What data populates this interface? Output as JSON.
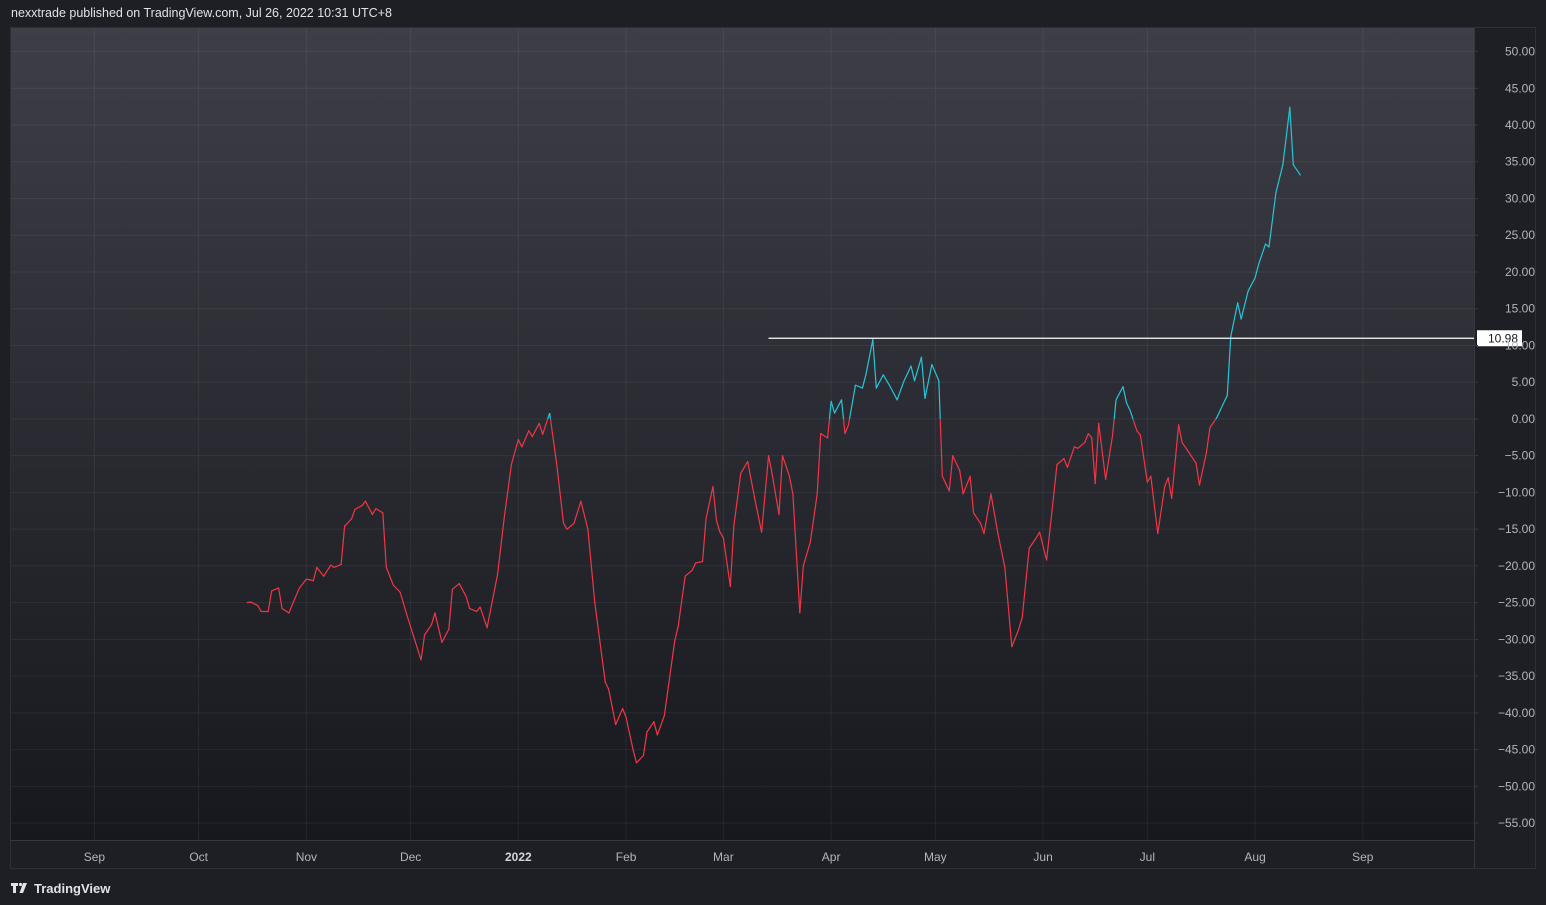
{
  "header": {
    "publisher_text": "nexxtrade published on TradingView.com, Jul 26, 2022 10:31 UTC+8"
  },
  "footer": {
    "brand": "TradingView"
  },
  "colors": {
    "up": "#26c6da",
    "down": "#f23645",
    "level_line": "#ffffff",
    "background_top": "#3d3e47",
    "background_bottom": "#17181d"
  },
  "chart_data": {
    "type": "line",
    "title": "",
    "xlabel": "",
    "ylabel": "",
    "x_ticks": [
      "Sep",
      "Oct",
      "Nov",
      "Dec",
      "2022",
      "Feb",
      "Mar",
      "Apr",
      "May",
      "Jun",
      "Jul",
      "Aug",
      "Sep"
    ],
    "y_ticks": [
      "50.00",
      "45.00",
      "40.00",
      "35.00",
      "30.00",
      "25.00",
      "20.00",
      "15.00",
      "10.00",
      "5.00",
      "0.00",
      "−5.00",
      "−10.00",
      "−15.00",
      "−20.00",
      "−25.00",
      "−30.00",
      "−35.00",
      "−40.00",
      "−45.00",
      "−50.00",
      "−55.00"
    ],
    "xlim": [
      "2021-08-08",
      "2022-10-03"
    ],
    "ylim": [
      -57.3,
      53.2
    ],
    "grid": true,
    "coloring_rule": "segments at or above 0 colored up (cyan), below 0 colored down (red)",
    "series": [
      {
        "points": [
          [
            "2021-10-15",
            -25.0
          ],
          [
            "2021-10-16",
            -24.9
          ],
          [
            "2021-10-18",
            -25.4
          ],
          [
            "2021-10-19",
            -26.2
          ],
          [
            "2021-10-21",
            -26.2
          ],
          [
            "2021-10-22",
            -23.4
          ],
          [
            "2021-10-24",
            -23.0
          ],
          [
            "2021-10-25",
            -25.8
          ],
          [
            "2021-10-27",
            -26.4
          ],
          [
            "2021-10-28",
            -25.2
          ],
          [
            "2021-10-30",
            -23.0
          ],
          [
            "2021-11-01",
            -21.8
          ],
          [
            "2021-11-03",
            -22.0
          ],
          [
            "2021-11-04",
            -20.2
          ],
          [
            "2021-11-06",
            -21.4
          ],
          [
            "2021-11-08",
            -19.9
          ],
          [
            "2021-11-09",
            -20.2
          ],
          [
            "2021-11-11",
            -19.8
          ],
          [
            "2021-11-12",
            -14.6
          ],
          [
            "2021-11-14",
            -13.6
          ],
          [
            "2021-11-15",
            -12.3
          ],
          [
            "2021-11-17",
            -11.8
          ],
          [
            "2021-11-18",
            -11.2
          ],
          [
            "2021-11-20",
            -13.0
          ],
          [
            "2021-11-21",
            -12.2
          ],
          [
            "2021-11-23",
            -12.8
          ],
          [
            "2021-11-24",
            -20.2
          ],
          [
            "2021-11-26",
            -22.6
          ],
          [
            "2021-11-28",
            -23.6
          ],
          [
            "2021-11-30",
            -26.8
          ],
          [
            "2021-12-02",
            -29.8
          ],
          [
            "2021-12-04",
            -32.8
          ],
          [
            "2021-12-05",
            -29.4
          ],
          [
            "2021-12-07",
            -28.0
          ],
          [
            "2021-12-08",
            -26.4
          ],
          [
            "2021-12-10",
            -30.4
          ],
          [
            "2021-12-12",
            -28.6
          ],
          [
            "2021-12-13",
            -23.2
          ],
          [
            "2021-12-15",
            -22.4
          ],
          [
            "2021-12-17",
            -24.2
          ],
          [
            "2021-12-18",
            -25.8
          ],
          [
            "2021-12-20",
            -26.2
          ],
          [
            "2021-12-21",
            -25.6
          ],
          [
            "2021-12-23",
            -28.4
          ],
          [
            "2021-12-26",
            -21.2
          ],
          [
            "2021-12-28",
            -13.2
          ],
          [
            "2021-12-30",
            -6.2
          ],
          [
            "2022-01-01",
            -2.8
          ],
          [
            "2022-01-02",
            -3.8
          ],
          [
            "2022-01-04",
            -1.6
          ],
          [
            "2022-01-05",
            -2.4
          ],
          [
            "2022-01-07",
            -0.6
          ],
          [
            "2022-01-08",
            -2.1
          ],
          [
            "2022-01-10",
            0.8
          ],
          [
            "2022-01-12",
            -6.0
          ],
          [
            "2022-01-14",
            -14.2
          ],
          [
            "2022-01-15",
            -15.0
          ],
          [
            "2022-01-17",
            -14.2
          ],
          [
            "2022-01-19",
            -11.2
          ],
          [
            "2022-01-21",
            -15.0
          ],
          [
            "2022-01-23",
            -25.0
          ],
          [
            "2022-01-26",
            -35.8
          ],
          [
            "2022-01-27",
            -36.8
          ],
          [
            "2022-01-29",
            -41.6
          ],
          [
            "2022-01-31",
            -39.4
          ],
          [
            "2022-02-01",
            -40.6
          ],
          [
            "2022-02-03",
            -45.0
          ],
          [
            "2022-02-04",
            -46.8
          ],
          [
            "2022-02-06",
            -45.8
          ],
          [
            "2022-02-07",
            -42.6
          ],
          [
            "2022-02-09",
            -41.2
          ],
          [
            "2022-02-10",
            -43.0
          ],
          [
            "2022-02-12",
            -40.4
          ],
          [
            "2022-02-15",
            -30.2
          ],
          [
            "2022-02-16",
            -28.2
          ],
          [
            "2022-02-18",
            -21.4
          ],
          [
            "2022-02-20",
            -20.6
          ],
          [
            "2022-02-21",
            -19.6
          ],
          [
            "2022-02-23",
            -19.4
          ],
          [
            "2022-02-24",
            -13.6
          ],
          [
            "2022-02-26",
            -9.2
          ],
          [
            "2022-02-27",
            -13.8
          ],
          [
            "2022-02-28",
            -15.4
          ],
          [
            "2022-03-01",
            -16.2
          ],
          [
            "2022-03-03",
            -22.8
          ],
          [
            "2022-03-04",
            -14.6
          ],
          [
            "2022-03-06",
            -7.4
          ],
          [
            "2022-03-08",
            -5.8
          ],
          [
            "2022-03-10",
            -10.8
          ],
          [
            "2022-03-12",
            -15.4
          ],
          [
            "2022-03-14",
            -5.0
          ],
          [
            "2022-03-15",
            -7.4
          ],
          [
            "2022-03-17",
            -13.0
          ],
          [
            "2022-03-18",
            -5.0
          ],
          [
            "2022-03-20",
            -7.8
          ],
          [
            "2022-03-21",
            -10.2
          ],
          [
            "2022-03-23",
            -26.4
          ],
          [
            "2022-03-24",
            -20.0
          ],
          [
            "2022-03-26",
            -16.8
          ],
          [
            "2022-03-28",
            -10.2
          ],
          [
            "2022-03-29",
            -2.0
          ],
          [
            "2022-03-31",
            -2.6
          ],
          [
            "2022-04-01",
            2.4
          ],
          [
            "2022-04-02",
            0.8
          ],
          [
            "2022-04-04",
            2.6
          ],
          [
            "2022-04-05",
            -2.0
          ],
          [
            "2022-04-06",
            -0.8
          ],
          [
            "2022-04-08",
            4.6
          ],
          [
            "2022-04-10",
            4.2
          ],
          [
            "2022-04-11",
            6.0
          ],
          [
            "2022-04-13",
            10.8
          ],
          [
            "2022-04-14",
            4.2
          ],
          [
            "2022-04-16",
            6.0
          ],
          [
            "2022-04-18",
            4.4
          ],
          [
            "2022-04-20",
            2.6
          ],
          [
            "2022-04-22",
            5.2
          ],
          [
            "2022-04-24",
            7.2
          ],
          [
            "2022-04-25",
            5.2
          ],
          [
            "2022-04-27",
            8.4
          ],
          [
            "2022-04-28",
            2.8
          ],
          [
            "2022-04-30",
            7.4
          ],
          [
            "2022-05-02",
            5.2
          ],
          [
            "2022-05-03",
            -7.8
          ],
          [
            "2022-05-05",
            -9.8
          ],
          [
            "2022-05-06",
            -5.0
          ],
          [
            "2022-05-08",
            -7.0
          ],
          [
            "2022-05-09",
            -10.2
          ],
          [
            "2022-05-11",
            -7.8
          ],
          [
            "2022-05-12",
            -12.8
          ],
          [
            "2022-05-14",
            -14.2
          ],
          [
            "2022-05-15",
            -15.6
          ],
          [
            "2022-05-17",
            -10.2
          ],
          [
            "2022-05-19",
            -15.6
          ],
          [
            "2022-05-21",
            -20.2
          ],
          [
            "2022-05-23",
            -31.0
          ],
          [
            "2022-05-25",
            -28.6
          ],
          [
            "2022-05-26",
            -27.0
          ],
          [
            "2022-05-28",
            -17.6
          ],
          [
            "2022-05-30",
            -16.2
          ],
          [
            "2022-05-31",
            -15.4
          ],
          [
            "2022-06-02",
            -19.2
          ],
          [
            "2022-06-03",
            -15.0
          ],
          [
            "2022-06-05",
            -6.2
          ],
          [
            "2022-06-07",
            -5.4
          ],
          [
            "2022-06-08",
            -6.6
          ],
          [
            "2022-06-10",
            -3.8
          ],
          [
            "2022-06-11",
            -4.0
          ],
          [
            "2022-06-13",
            -3.2
          ],
          [
            "2022-06-14",
            -2.0
          ],
          [
            "2022-06-15",
            -2.6
          ],
          [
            "2022-06-16",
            -8.8
          ],
          [
            "2022-06-17",
            -0.6
          ],
          [
            "2022-06-19",
            -8.2
          ],
          [
            "2022-06-21",
            -2.2
          ],
          [
            "2022-06-22",
            2.6
          ],
          [
            "2022-06-24",
            4.4
          ],
          [
            "2022-06-25",
            2.2
          ],
          [
            "2022-06-26",
            1.2
          ],
          [
            "2022-06-28",
            -1.6
          ],
          [
            "2022-06-29",
            -2.2
          ],
          [
            "2022-07-01",
            -8.6
          ],
          [
            "2022-07-02",
            -7.8
          ],
          [
            "2022-07-04",
            -15.6
          ],
          [
            "2022-07-06",
            -9.2
          ],
          [
            "2022-07-07",
            -8.0
          ],
          [
            "2022-07-08",
            -10.8
          ],
          [
            "2022-07-10",
            -0.8
          ],
          [
            "2022-07-11",
            -3.2
          ],
          [
            "2022-07-13",
            -4.6
          ],
          [
            "2022-07-15",
            -6.0
          ],
          [
            "2022-07-16",
            -9.0
          ],
          [
            "2022-07-18",
            -4.6
          ],
          [
            "2022-07-19",
            -1.2
          ],
          [
            "2022-07-21",
            0.2
          ],
          [
            "2022-07-22",
            1.2
          ],
          [
            "2022-07-24",
            3.2
          ],
          [
            "2022-07-25",
            11.2
          ],
          [
            "2022-07-27",
            15.8
          ],
          [
            "2022-07-28",
            13.6
          ],
          [
            "2022-07-30",
            17.4
          ],
          [
            "2022-08-01",
            19.2
          ],
          [
            "2022-08-02",
            21.0
          ],
          [
            "2022-08-04",
            23.8
          ],
          [
            "2022-08-05",
            23.4
          ],
          [
            "2022-08-07",
            30.8
          ],
          [
            "2022-08-09",
            34.6
          ],
          [
            "2022-08-11",
            42.4
          ],
          [
            "2022-08-12",
            34.6
          ],
          [
            "2022-08-14",
            33.2
          ]
        ]
      }
    ],
    "horizontal_level": {
      "value": 10.98,
      "label": "10.98",
      "start": "2022-03-14"
    }
  }
}
